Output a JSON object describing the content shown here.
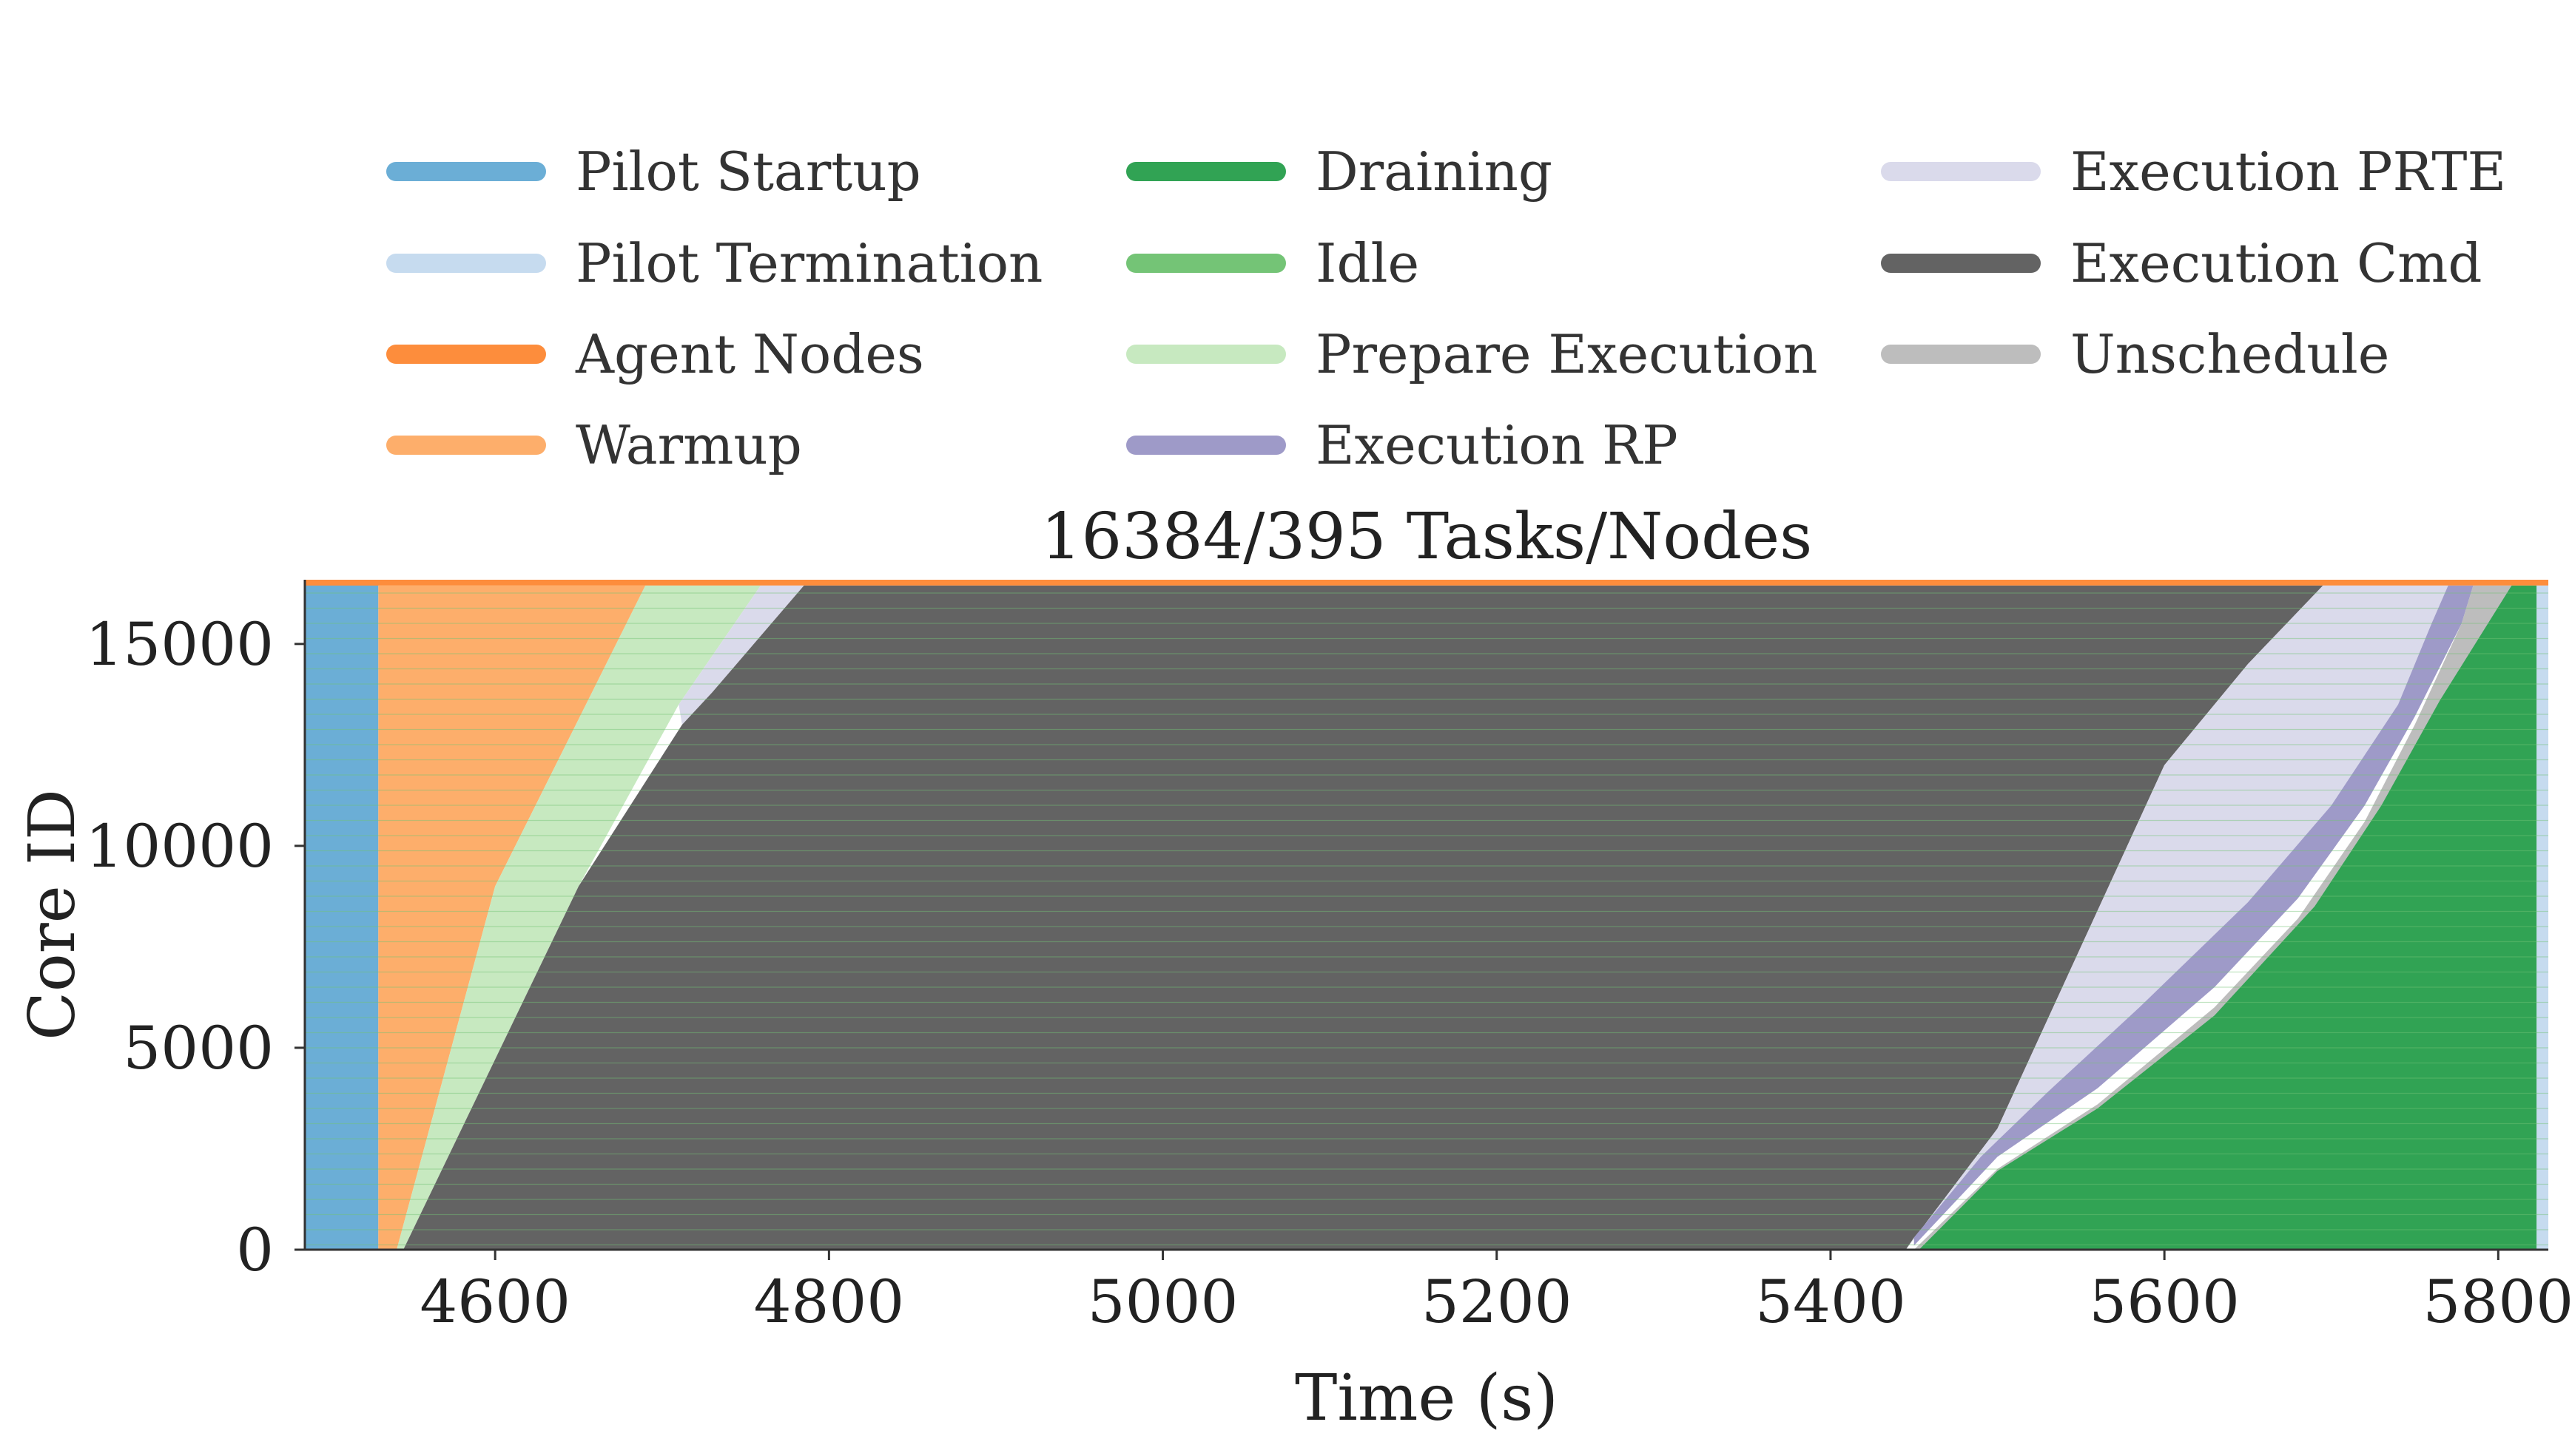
{
  "chart_data": {
    "type": "area",
    "title": "16384/395 Tasks/Nodes",
    "xlabel": "Time (s)",
    "ylabel": "Core ID",
    "xlim": [
      4486,
      5830
    ],
    "ylim": [
      0,
      16590
    ],
    "xticks": [
      4600,
      4800,
      5000,
      5200,
      5400,
      5600,
      5800
    ],
    "yticks": [
      0,
      5000,
      10000,
      15000
    ],
    "grid": false,
    "legend_position": "top",
    "legend": [
      {
        "name": "Pilot Startup",
        "color": "#6baed6"
      },
      {
        "name": "Pilot Termination",
        "color": "#c6dbef"
      },
      {
        "name": "Agent Nodes",
        "color": "#fd8d3c"
      },
      {
        "name": "Warmup",
        "color": "#fdae6b"
      },
      {
        "name": "Draining",
        "color": "#31a354"
      },
      {
        "name": "Idle",
        "color": "#74c476"
      },
      {
        "name": "Prepare Execution",
        "color": "#c7e9c0"
      },
      {
        "name": "Execution RP",
        "color": "#9e9ac8"
      },
      {
        "name": "Execution PRTE",
        "color": "#dadaeb"
      },
      {
        "name": "Execution Cmd",
        "color": "#636363"
      },
      {
        "name": "Unschedule",
        "color": "#bdbdbd"
      }
    ],
    "series": [
      {
        "name": "Pilot Startup",
        "color": "#6baed6",
        "points": [
          [
            4486,
            0
          ],
          [
            4486,
            16590
          ],
          [
            4530,
            16590
          ],
          [
            4530,
            0
          ]
        ]
      },
      {
        "name": "Agent Nodes",
        "color": "#fd8d3c",
        "points": [
          [
            4486,
            16445
          ],
          [
            5830,
            16445
          ],
          [
            5830,
            16590
          ],
          [
            4486,
            16590
          ]
        ]
      },
      {
        "name": "Warmup",
        "color": "#fdae6b",
        "points": [
          [
            4530,
            0
          ],
          [
            4530,
            16445
          ],
          [
            4690,
            16445
          ],
          [
            4600,
            9000
          ],
          [
            4541,
            0
          ]
        ]
      },
      {
        "name": "Prepare Execution",
        "color": "#c7e9c0",
        "points": [
          [
            4541,
            0
          ],
          [
            4600,
            9000
          ],
          [
            4690,
            16445
          ],
          [
            4759,
            16445
          ],
          [
            4710,
            13500
          ],
          [
            4650,
            9000
          ],
          [
            4545,
            0
          ]
        ]
      },
      {
        "name": "Execution PRTE",
        "color": "#dadaeb",
        "points": [
          [
            4710,
            13500
          ],
          [
            4759,
            16445
          ],
          [
            4785,
            16445
          ],
          [
            4730,
            13800
          ],
          [
            4712,
            13000
          ]
        ]
      },
      {
        "name": "Execution Cmd",
        "color": "#636363",
        "points": [
          [
            4545,
            0
          ],
          [
            4650,
            9000
          ],
          [
            4712,
            13000
          ],
          [
            4730,
            13800
          ],
          [
            4785,
            16445
          ],
          [
            5695,
            16445
          ],
          [
            5650,
            14500
          ],
          [
            5600,
            12000
          ],
          [
            5550,
            7500
          ],
          [
            5500,
            3000
          ],
          [
            5445,
            0
          ]
        ]
      },
      {
        "name": "Execution PRTE",
        "color": "#dadaeb",
        "points": [
          [
            5445,
            0
          ],
          [
            5500,
            3000
          ],
          [
            5550,
            7500
          ],
          [
            5600,
            12000
          ],
          [
            5650,
            14500
          ],
          [
            5695,
            16445
          ],
          [
            5770,
            16445
          ],
          [
            5760,
            15500
          ],
          [
            5740,
            13500
          ],
          [
            5700,
            11000
          ],
          [
            5650,
            8600
          ],
          [
            5585,
            6000
          ],
          [
            5530,
            3900
          ],
          [
            5490,
            2300
          ],
          [
            5450,
            300
          ]
        ]
      },
      {
        "name": "Execution RP",
        "color": "#9e9ac8",
        "points": [
          [
            5450,
            300
          ],
          [
            5490,
            2300
          ],
          [
            5530,
            3900
          ],
          [
            5585,
            6000
          ],
          [
            5650,
            8600
          ],
          [
            5700,
            11000
          ],
          [
            5740,
            13500
          ],
          [
            5760,
            15500
          ],
          [
            5770,
            16445
          ],
          [
            5785,
            16445
          ],
          [
            5778,
            15500
          ],
          [
            5750,
            13200
          ],
          [
            5720,
            11000
          ],
          [
            5680,
            8700
          ],
          [
            5630,
            6500
          ],
          [
            5560,
            4000
          ],
          [
            5500,
            2300
          ],
          [
            5450,
            100
          ]
        ]
      },
      {
        "name": "Unschedule",
        "color": "#bdbdbd",
        "points": [
          [
            5450,
            0
          ],
          [
            5500,
            2000
          ],
          [
            5560,
            3600
          ],
          [
            5630,
            6000
          ],
          [
            5680,
            8200
          ],
          [
            5720,
            10600
          ],
          [
            5750,
            13000
          ],
          [
            5778,
            15500
          ],
          [
            5785,
            16445
          ],
          [
            5808,
            16445
          ],
          [
            5808,
            0
          ]
        ]
      },
      {
        "name": "Draining",
        "color": "#31a354",
        "points": [
          [
            5453,
            0
          ],
          [
            5500,
            1950
          ],
          [
            5560,
            3500
          ],
          [
            5630,
            5800
          ],
          [
            5690,
            8500
          ],
          [
            5730,
            11000
          ],
          [
            5765,
            13600
          ],
          [
            5808,
            16445
          ],
          [
            5823,
            16445
          ],
          [
            5823,
            0
          ]
        ]
      },
      {
        "name": "Pilot Termination",
        "color": "#c6dbef",
        "points": [
          [
            5823,
            0
          ],
          [
            5823,
            16445
          ],
          [
            5830,
            16445
          ],
          [
            5830,
            0
          ]
        ]
      }
    ]
  }
}
